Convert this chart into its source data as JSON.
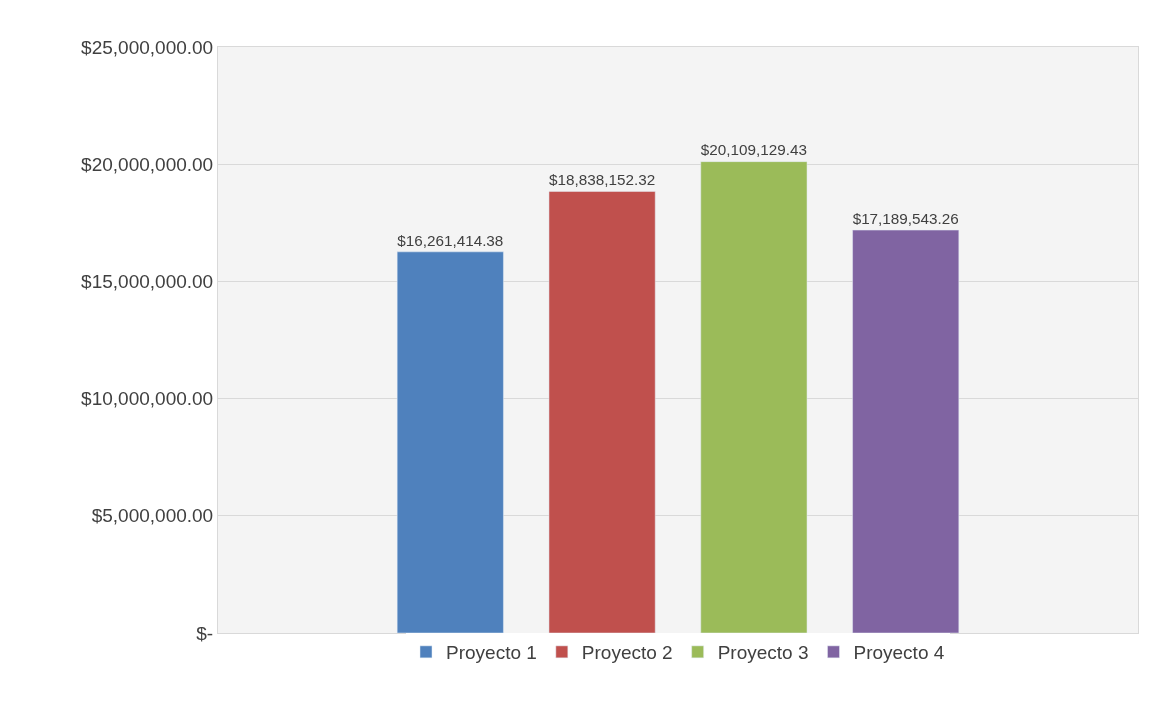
{
  "chart_data": {
    "type": "bar",
    "categories": [
      null
    ],
    "series": [
      {
        "name": "Proyecto 1",
        "color": "#4f81bd",
        "values": [
          16261414.38
        ],
        "value_labels": [
          "$16,261,414.38"
        ]
      },
      {
        "name": "Proyecto 2",
        "color": "#c0504d",
        "values": [
          18838152.32
        ],
        "value_labels": [
          "$18,838,152.32"
        ]
      },
      {
        "name": "Proyecto 3",
        "color": "#9bbb59",
        "values": [
          20109129.43
        ],
        "value_labels": [
          "$20,109,129.43"
        ]
      },
      {
        "name": "Proyecto 4",
        "color": "#8064a2",
        "values": [
          17189543.26
        ],
        "value_labels": [
          "$17,189,543.26"
        ]
      }
    ],
    "ylim": [
      0,
      25000000
    ],
    "yticks": [
      {
        "value": 0,
        "label": "$-"
      },
      {
        "value": 5000000,
        "label": "$5,000,000.00"
      },
      {
        "value": 10000000,
        "label": "$10,000,000.00"
      },
      {
        "value": 15000000,
        "label": "$15,000,000.00"
      },
      {
        "value": 20000000,
        "label": "$20,000,000.00"
      },
      {
        "value": 25000000,
        "label": "$25,000,000.00"
      }
    ],
    "grid": "y",
    "legend": "bottom",
    "tick_labels": "y"
  }
}
